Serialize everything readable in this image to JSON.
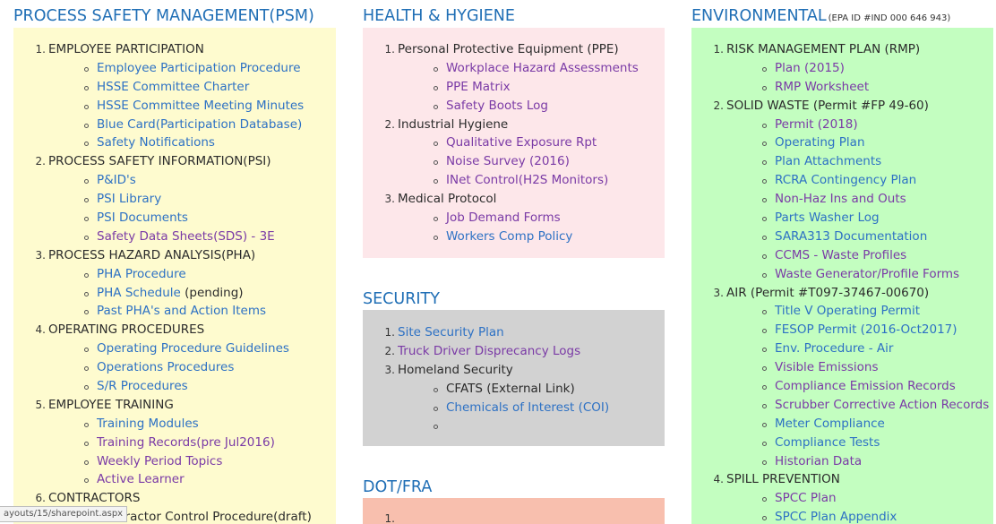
{
  "psm": {
    "title": "PROCESS SAFETY MANAGEMENT(PSM)",
    "items": [
      {
        "num": "1.",
        "label": "EMPLOYEE PARTICIPATION",
        "children": [
          {
            "text": "Employee Participation Procedure",
            "style": "link"
          },
          {
            "text": "HSSE Committee Charter",
            "style": "link"
          },
          {
            "text": "HSSE Committee Meeting Minutes",
            "style": "link"
          },
          {
            "text": "Blue Card(Participation Database)",
            "style": "link"
          },
          {
            "text": "Safety Notifications",
            "style": "link"
          }
        ]
      },
      {
        "num": "2.",
        "label": "PROCESS SAFETY INFORMATION(PSI)",
        "children": [
          {
            "text": "P&ID's",
            "style": "link"
          },
          {
            "text": "PSI Library",
            "style": "link"
          },
          {
            "text": "PSI Documents",
            "style": "link"
          },
          {
            "text": "Safety Data Sheets(SDS) - 3E",
            "style": "visited"
          }
        ]
      },
      {
        "num": "3.",
        "label": "PROCESS HAZARD ANALYSIS(PHA)",
        "children": [
          {
            "text": "PHA Procedure",
            "style": "link"
          },
          {
            "text": "PHA Schedule",
            "style": "link",
            "suffix": " (pending)"
          },
          {
            "text": "Past PHA's and Action Items",
            "style": "link"
          }
        ]
      },
      {
        "num": "4.",
        "label": "OPERATING PROCEDURES",
        "children": [
          {
            "text": "Operating Procedure Guidelines",
            "style": "link"
          },
          {
            "text": "Operations Procedures",
            "style": "link"
          },
          {
            "text": "S/R Procedures",
            "style": "link"
          }
        ]
      },
      {
        "num": "5.",
        "label": "EMPLOYEE TRAINING",
        "children": [
          {
            "text": "Training Modules",
            "style": "link"
          },
          {
            "text": "Training Records(pre Jul2016)",
            "style": "visited"
          },
          {
            "text": "Weekly Period Topics",
            "style": "visited"
          },
          {
            "text": "Active Learner",
            "style": "visited"
          }
        ]
      },
      {
        "num": "6.",
        "label": "CONTRACTORS",
        "children": [
          {
            "text": "Contractor Control Procedure(draft)",
            "style": "plain"
          }
        ]
      }
    ]
  },
  "health": {
    "title": "HEALTH & HYGIENE",
    "items": [
      {
        "num": "1.",
        "label": "Personal Protective Equipment (PPE)",
        "children": [
          {
            "text": "Workplace Hazard Assessments",
            "style": "visited"
          },
          {
            "text": "PPE Matrix",
            "style": "visited"
          },
          {
            "text": "Safety Boots Log",
            "style": "visited"
          }
        ]
      },
      {
        "num": "2.",
        "label": "Industrial Hygiene",
        "children": [
          {
            "text": "Qualitative Exposure Rpt",
            "style": "visited"
          },
          {
            "text": "Noise Survey (2016)",
            "style": "visited"
          },
          {
            "text": "INet Control(H2S Monitors)",
            "style": "visited"
          }
        ]
      },
      {
        "num": "3.",
        "label": "Medical Protocol",
        "children": [
          {
            "text": "Job Demand Forms",
            "style": "visited"
          },
          {
            "text": "Workers Comp Policy",
            "style": "link"
          }
        ]
      }
    ]
  },
  "security": {
    "title": "SECURITY",
    "items": [
      {
        "num": "1.",
        "label": "Site Security Plan",
        "label_style": "link",
        "children": []
      },
      {
        "num": "2.",
        "label": "Truck Driver Disprecancy Logs",
        "label_style": "visited",
        "children": []
      },
      {
        "num": "3.",
        "label": "Homeland Security",
        "children": [
          {
            "text": "CFATS (External Link)",
            "style": "plain"
          },
          {
            "text": "Chemicals of Interest (COI)",
            "style": "link"
          },
          {
            "text": "",
            "style": "plain"
          }
        ]
      }
    ]
  },
  "dot": {
    "title": "DOT/FRA",
    "items": [
      {
        "num": "1.",
        "label": "",
        "children": []
      }
    ]
  },
  "environmental": {
    "title": "ENVIRONMENTAL",
    "subtitle": "(EPA ID #IND 000 646 943)",
    "items": [
      {
        "num": "1.",
        "label": "RISK MANAGEMENT PLAN (RMP)",
        "children": [
          {
            "text": "Plan (2015)",
            "style": "visited"
          },
          {
            "text": "RMP Worksheet",
            "style": "visited"
          }
        ]
      },
      {
        "num": "2.",
        "label": "SOLID WASTE (Permit #FP 49-60)",
        "children": [
          {
            "text": "Permit (2018)",
            "style": "visited"
          },
          {
            "text": "Operating Plan",
            "style": "link"
          },
          {
            "text": "Plan Attachments",
            "style": "link"
          },
          {
            "text": "RCRA Contingency Plan",
            "style": "link"
          },
          {
            "text": "Non-Haz Ins and Outs",
            "style": "visited"
          },
          {
            "text": "Parts Washer Log",
            "style": "link"
          },
          {
            "text": "SARA313 Documentation",
            "style": "link"
          },
          {
            "text": "CCMS - Waste Profiles",
            "style": "visited"
          },
          {
            "text": "Waste Generator/Profile Forms",
            "style": "visited"
          }
        ]
      },
      {
        "num": "3.",
        "label": "AIR (Permit #T097-37467-00670)",
        "children": [
          {
            "text": "Title V Operating Permit",
            "style": "link"
          },
          {
            "text": "FESOP Permit (2016-Oct2017)",
            "style": "link"
          },
          {
            "text": "Env. Procedure - Air",
            "style": "link"
          },
          {
            "text": "Visible Emissions",
            "style": "visited"
          },
          {
            "text": "Compliance Emission Records",
            "style": "visited"
          },
          {
            "text": "Scrubber Corrective Action Records",
            "style": "visited"
          },
          {
            "text": "Meter Compliance",
            "style": "link"
          },
          {
            "text": "Compliance Tests",
            "style": "link"
          },
          {
            "text": "Historian Data",
            "style": "visited"
          }
        ]
      },
      {
        "num": "4.",
        "label": "SPILL PREVENTION",
        "children": [
          {
            "text": "SPCC Plan",
            "style": "visited"
          },
          {
            "text": "SPCC Plan Appendix",
            "style": "link"
          }
        ]
      }
    ]
  },
  "status_bar": {
    "url": "ayouts/15/sharepoint.aspx"
  }
}
